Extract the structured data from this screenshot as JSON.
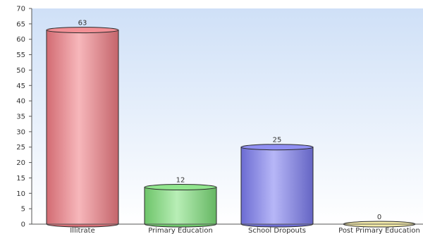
{
  "chart_data": {
    "type": "bar",
    "style": "cylinder",
    "categories": [
      "Illitrate",
      "Primary Education",
      "School Dropouts",
      "Post Primary Education"
    ],
    "values": [
      63,
      12,
      25,
      0
    ],
    "data_labels": [
      "63",
      "12",
      "25",
      "0"
    ],
    "colors": [
      "#f07c84",
      "#7ee07a",
      "#7c7cf0",
      "#f3e99a"
    ],
    "title": "",
    "xlabel": "",
    "ylabel": "",
    "ylim": [
      0,
      70
    ],
    "yticks": [
      0,
      5,
      10,
      15,
      20,
      25,
      30,
      35,
      40,
      45,
      50,
      55,
      60,
      65,
      70
    ],
    "grid": false,
    "legend": "none"
  }
}
